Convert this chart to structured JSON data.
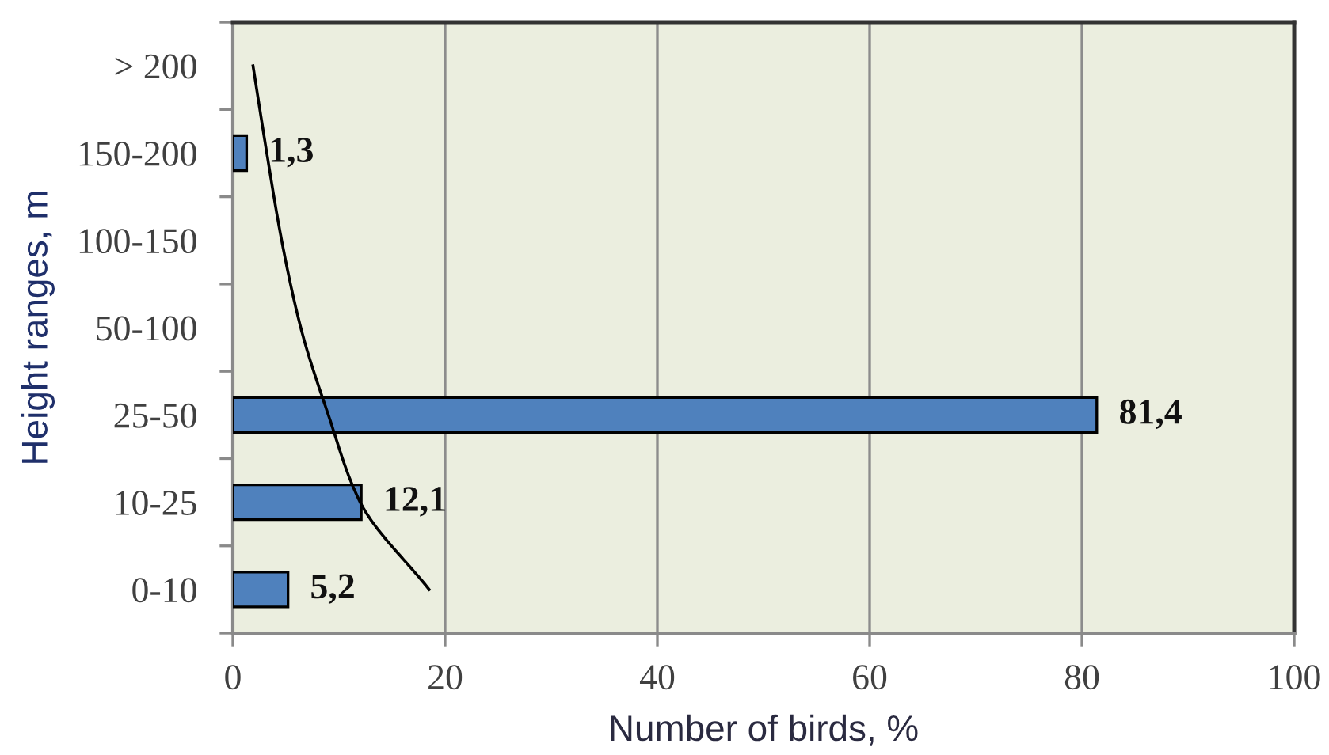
{
  "chart_data": {
    "type": "bar",
    "orientation": "horizontal",
    "xlabel": "Number of birds, %",
    "ylabel": "Height ranges, m",
    "categories": [
      "> 200",
      "150-200",
      "100-150",
      "50-100",
      "25-50",
      "10-25",
      "0-10"
    ],
    "series": [
      {
        "color": "#4f81bd",
        "values": [
          null,
          1.3,
          null,
          null,
          81.4,
          12.1,
          5.2
        ],
        "value_labels": [
          null,
          "1,3",
          null,
          null,
          "81,4",
          "12,1",
          "5,2"
        ]
      },
      {
        "type": "line",
        "color": "#000000",
        "line_style": "solid",
        "values": [
          1.9,
          3.2,
          4.6,
          6.4,
          9.0,
          12.0,
          18.5
        ]
      }
    ],
    "xlim": [
      0,
      100
    ],
    "xticks": [
      0,
      20,
      40,
      60,
      80,
      100
    ],
    "grid": "x"
  }
}
